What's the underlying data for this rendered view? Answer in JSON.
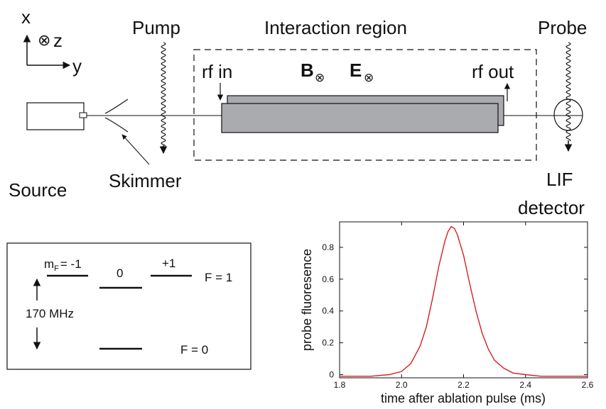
{
  "axes": {
    "x_label": "x",
    "y_label": "y",
    "z_label": "z",
    "z_symbol": "⊗"
  },
  "labels": {
    "pump": "Pump",
    "interaction_region": "Interaction region",
    "probe": "Probe",
    "rf_in": "rf in",
    "rf_out": "rf out",
    "b_field": "B",
    "e_field": "E",
    "field_symbol": "⊗",
    "source": "Source",
    "skimmer": "Skimmer",
    "lif_line1": "LIF",
    "lif_line2": "detector"
  },
  "levels": {
    "mf_label": "m",
    "mf_sub": "F",
    "mf_minus": "= -1",
    "mf_zero": "0",
    "mf_plus": "+1",
    "f1": "F = 1",
    "f0": "F = 0",
    "splitting": "170 MHz"
  },
  "chart_data": {
    "type": "line",
    "xlabel": "time after ablation pulse (ms)",
    "ylabel": "probe fluoresence",
    "xlim": [
      1.8,
      2.6
    ],
    "ylim": [
      -0.02,
      0.96
    ],
    "x_ticks": [
      1.8,
      2.0,
      2.2,
      2.4,
      2.6
    ],
    "y_ticks": [
      0,
      0.2,
      0.4,
      0.6,
      0.8
    ],
    "x_tick_labels": [
      "1.8",
      "2.0",
      "2.2",
      "2.4",
      "2.6"
    ],
    "y_tick_labels": [
      "0",
      "0.2",
      "0.4",
      "0.6",
      "0.8"
    ],
    "line_color": "#d62020",
    "series": [
      {
        "x": [
          1.8,
          1.9,
          1.96,
          2.0,
          2.03,
          2.06,
          2.08,
          2.1,
          2.12,
          2.14,
          2.15,
          2.16,
          2.17,
          2.18,
          2.2,
          2.22,
          2.24,
          2.26,
          2.28,
          2.3,
          2.33,
          2.36,
          2.4,
          2.45,
          2.5,
          2.6
        ],
        "y": [
          -0.01,
          -0.01,
          0.0,
          0.02,
          0.07,
          0.18,
          0.3,
          0.48,
          0.68,
          0.84,
          0.9,
          0.93,
          0.92,
          0.88,
          0.75,
          0.57,
          0.4,
          0.26,
          0.16,
          0.09,
          0.04,
          0.01,
          0.0,
          -0.01,
          -0.01,
          -0.01
        ]
      }
    ]
  }
}
